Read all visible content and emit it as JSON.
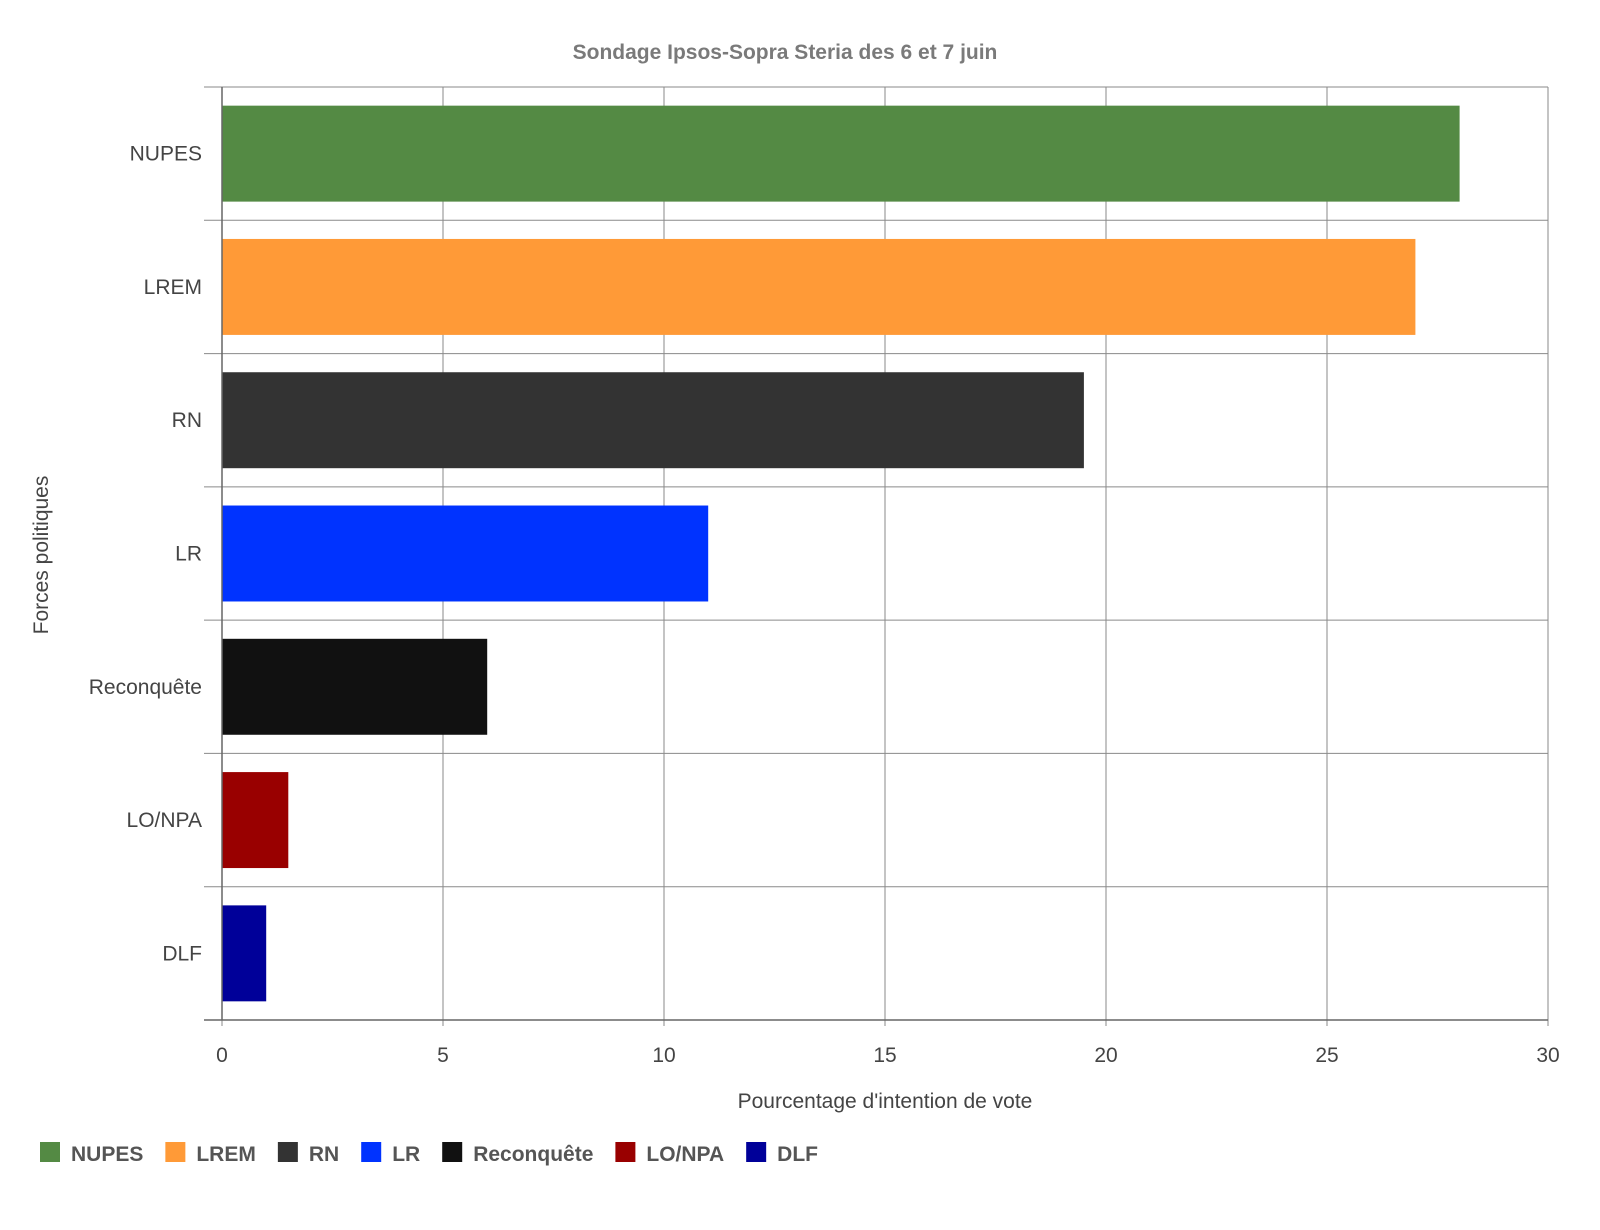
{
  "chart_data": {
    "type": "bar",
    "orientation": "horizontal",
    "title": "Sondage Ipsos-Sopra Steria des 6 et 7 juin",
    "xlabel": "Pourcentage d'intention de vote",
    "ylabel": "Forces politiques",
    "xlim": [
      0,
      30
    ],
    "xticks": [
      "0",
      "5",
      "10",
      "15",
      "20",
      "25",
      "30"
    ],
    "grid": true,
    "legend_position": "bottom-left",
    "categories": [
      "NUPES",
      "LREM",
      "RN",
      "LR",
      "Reconquête",
      "LO/NPA",
      "DLF"
    ],
    "values": [
      28,
      27,
      19.5,
      11,
      6,
      1.5,
      1
    ],
    "colors": [
      "#548a44",
      "#ff9a37",
      "#333333",
      "#0033ff",
      "#111111",
      "#990000",
      "#000099"
    ]
  }
}
